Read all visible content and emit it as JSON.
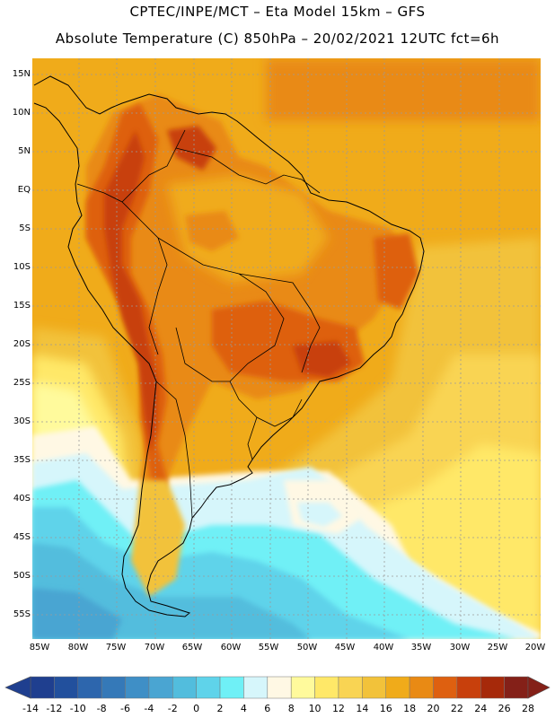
{
  "title": {
    "line1": "CPTEC/INPE/MCT –  Eta Model 15km – GFS",
    "line2": "Absolute Temperature (C) 850hPa – 20/02/2021 12UTC fct=6h"
  },
  "lat_ticks": [
    "15N",
    "10N",
    "5N",
    "EQ",
    "5S",
    "10S",
    "15S",
    "20S",
    "25S",
    "30S",
    "35S",
    "40S",
    "45S",
    "50S",
    "55S"
  ],
  "lon_ticks": [
    "85W",
    "80W",
    "75W",
    "70W",
    "65W",
    "60W",
    "55W",
    "50W",
    "45W",
    "40W",
    "35W",
    "30W",
    "25W",
    "20W"
  ],
  "colorbar": {
    "labels": [
      "-14",
      "-12",
      "-10",
      "-8",
      "-6",
      "-4",
      "-2",
      "0",
      "2",
      "4",
      "6",
      "8",
      "10",
      "12",
      "14",
      "16",
      "18",
      "20",
      "22",
      "24",
      "26",
      "28"
    ],
    "colors": [
      "#1f3f8f",
      "#22509d",
      "#2d66ad",
      "#3579b8",
      "#3f8fc6",
      "#4aa5d2",
      "#52bddd",
      "#5fd3ea",
      "#6ff0f6",
      "#d6f6fb",
      "#fff8e4",
      "#fffa9c",
      "#ffe868",
      "#f9d453",
      "#f2c23a",
      "#f0ab1a",
      "#e98a14",
      "#de6010",
      "#c8400c",
      "#a6290a",
      "#842018"
    ]
  },
  "map": {
    "projection": "lat-lon",
    "lon_range": [
      -86,
      -19.5
    ],
    "lat_range": [
      -58,
      17
    ],
    "field": "temperature_850hPa_C"
  }
}
